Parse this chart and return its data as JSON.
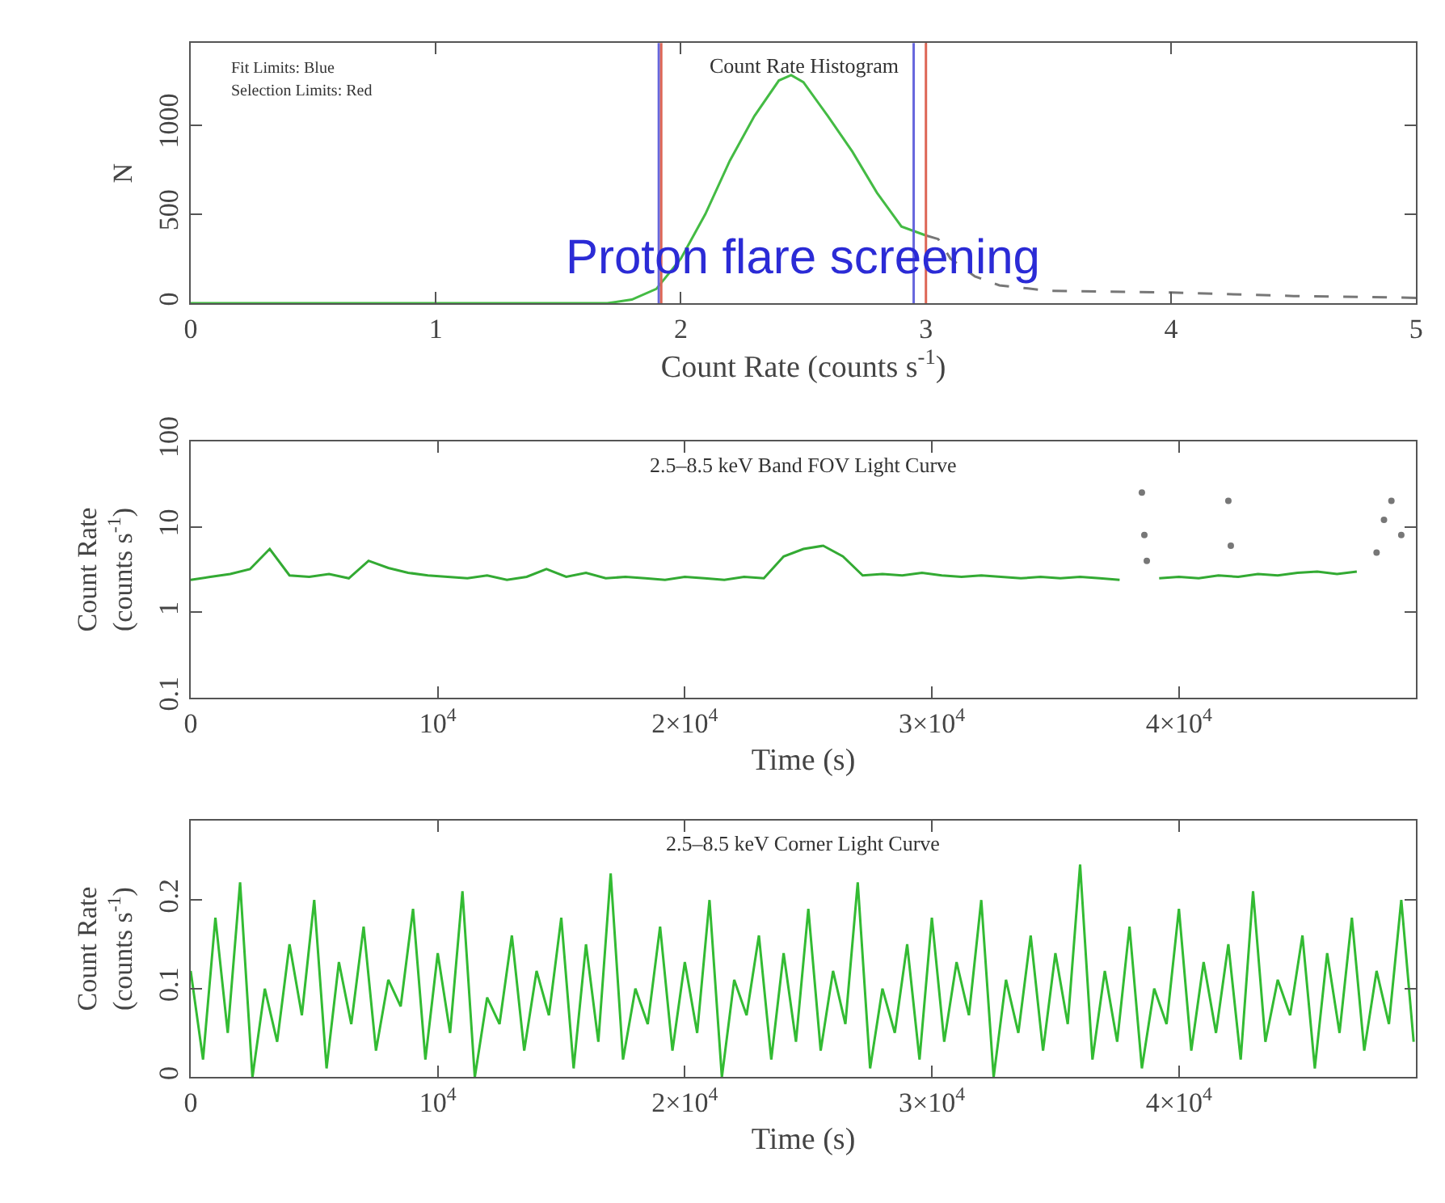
{
  "chart_data": [
    {
      "type": "line",
      "title": "Count Rate Histogram",
      "subtitle": "Proton flare screening",
      "xlabel": "Count Rate (counts s$^{-1}$)",
      "ylabel": "N",
      "series": [
        {
          "color": "#44bb44",
          "line_style": "solid",
          "x": [
            0,
            0.5,
            1.0,
            1.5,
            1.7,
            1.8,
            1.9,
            2.0,
            2.1,
            2.2,
            2.3,
            2.4,
            2.45,
            2.5,
            2.6,
            2.7,
            2.8,
            2.9,
            3.0
          ],
          "values": [
            0,
            0,
            0,
            0,
            0,
            20,
            80,
            250,
            500,
            800,
            1050,
            1250,
            1280,
            1240,
            1050,
            850,
            620,
            430,
            380
          ]
        },
        {
          "color": "#777777",
          "line_style": "dashed",
          "x": [
            3.0,
            3.05,
            3.1,
            3.2,
            3.3,
            3.5,
            4.0,
            4.5,
            5.0
          ],
          "values": [
            380,
            360,
            250,
            150,
            100,
            70,
            60,
            40,
            30
          ]
        }
      ],
      "xlim": [
        0,
        5
      ],
      "ylim": [
        0,
        1460
      ],
      "xticks": [
        0,
        1,
        2,
        3,
        4,
        5
      ],
      "yticks": [
        0,
        500,
        1000
      ],
      "ref_lines": [
        {
          "axis": "x",
          "value": 1.91,
          "color": "#6666dd"
        },
        {
          "axis": "x",
          "value": 2.95,
          "color": "#6666dd"
        },
        {
          "axis": "x",
          "value": 1.92,
          "color": "#dd6655"
        },
        {
          "axis": "x",
          "value": 3.0,
          "color": "#dd6655"
        }
      ],
      "annotations": [
        "Fit Limits: Blue",
        "Selection Limits: Red"
      ]
    },
    {
      "type": "line",
      "title": "2.5–8.5 keV Band FOV Light Curve",
      "xlabel": "Time (s)",
      "ylabel": "Count Rate\n(counts s$^{-1}$)",
      "log": true,
      "series": [
        {
          "color": "#33aa33",
          "x": [
            0,
            800,
            1600,
            2400,
            3200,
            4000,
            4800,
            5600,
            6400,
            7200,
            8000,
            8800,
            9600,
            10400,
            11200,
            12000,
            12800,
            13600,
            14400,
            15200,
            16000,
            16800,
            17600,
            18400,
            19200,
            20000,
            20800,
            21600,
            22400,
            23200,
            24000,
            24800,
            25600,
            26400,
            27200,
            28000,
            28800,
            29600,
            30400,
            31200,
            32000,
            32800,
            33600,
            34400,
            35200,
            36000,
            36800,
            37600,
            38400,
            39200,
            40000,
            40800,
            41600,
            42400,
            43200,
            44000,
            44800,
            45600,
            46400,
            47200
          ],
          "values": [
            2.4,
            2.6,
            2.8,
            3.2,
            5.5,
            2.7,
            2.6,
            2.8,
            2.5,
            4.0,
            3.3,
            2.9,
            2.7,
            2.6,
            2.5,
            2.7,
            2.4,
            2.6,
            3.2,
            2.6,
            2.9,
            2.5,
            2.6,
            2.5,
            2.4,
            2.6,
            2.5,
            2.4,
            2.6,
            2.5,
            4.5,
            5.5,
            6.0,
            4.5,
            2.7,
            2.8,
            2.7,
            2.9,
            2.7,
            2.6,
            2.7,
            2.6,
            2.5,
            2.6,
            2.5,
            2.6,
            2.5,
            2.4,
            null,
            2.5,
            2.6,
            2.5,
            2.7,
            2.6,
            2.8,
            2.7,
            2.9,
            3.0,
            2.8,
            3.0
          ]
        },
        {
          "type": "scatter",
          "marker": "circle",
          "color": "#777777",
          "x": [
            38500,
            38600,
            38700,
            42000,
            42100,
            48000,
            48300,
            48600,
            49000
          ],
          "values": [
            25,
            8,
            4,
            20,
            6,
            5,
            12,
            20,
            8
          ]
        }
      ],
      "xlim": [
        0,
        49600
      ],
      "ylim": [
        0.1,
        100
      ],
      "xticks": [
        0,
        {
          "value": 10000,
          "label": "10$^{4}$"
        },
        {
          "value": 20000,
          "label": "2×10$^{4}$"
        },
        {
          "value": 30000,
          "label": "3×10$^{4}$"
        },
        {
          "value": 40000,
          "label": "4×10$^{4}$"
        }
      ],
      "yticks": [
        0.1,
        1,
        10,
        100
      ]
    },
    {
      "type": "line",
      "title": "2.5–8.5 keV Corner Light Curve",
      "xlabel": "Time (s)",
      "ylabel": "Count Rate\n(counts s$^{-1}$)",
      "series": [
        {
          "color": "#33bb33",
          "x": [
            0,
            500,
            1000,
            1500,
            2000,
            2500,
            3000,
            3500,
            4000,
            4500,
            5000,
            5500,
            6000,
            6500,
            7000,
            7500,
            8000,
            8500,
            9000,
            9500,
            10000,
            10500,
            11000,
            11500,
            12000,
            12500,
            13000,
            13500,
            14000,
            14500,
            15000,
            15500,
            16000,
            16500,
            17000,
            17500,
            18000,
            18500,
            19000,
            19500,
            20000,
            20500,
            21000,
            21500,
            22000,
            22500,
            23000,
            23500,
            24000,
            24500,
            25000,
            25500,
            26000,
            26500,
            27000,
            27500,
            28000,
            28500,
            29000,
            29500,
            30000,
            30500,
            31000,
            31500,
            32000,
            32500,
            33000,
            33500,
            34000,
            34500,
            35000,
            35500,
            36000,
            36500,
            37000,
            37500,
            38000,
            38500,
            39000,
            39500,
            40000,
            40500,
            41000,
            41500,
            42000,
            42500,
            43000,
            43500,
            44000,
            44500,
            45000,
            45500,
            46000,
            46500,
            47000,
            47500,
            48000,
            48500,
            49000,
            49500
          ],
          "values": [
            0.12,
            0.02,
            0.18,
            0.05,
            0.22,
            0.0,
            0.1,
            0.04,
            0.15,
            0.07,
            0.2,
            0.01,
            0.13,
            0.06,
            0.17,
            0.03,
            0.11,
            0.08,
            0.19,
            0.02,
            0.14,
            0.05,
            0.21,
            0.0,
            0.09,
            0.06,
            0.16,
            0.03,
            0.12,
            0.07,
            0.18,
            0.01,
            0.15,
            0.04,
            0.23,
            0.02,
            0.1,
            0.06,
            0.17,
            0.03,
            0.13,
            0.05,
            0.2,
            0.0,
            0.11,
            0.07,
            0.16,
            0.02,
            0.14,
            0.04,
            0.19,
            0.03,
            0.12,
            0.06,
            0.22,
            0.01,
            0.1,
            0.05,
            0.15,
            0.02,
            0.18,
            0.04,
            0.13,
            0.07,
            0.2,
            0.0,
            0.11,
            0.05,
            0.16,
            0.03,
            0.14,
            0.06,
            0.24,
            0.02,
            0.12,
            0.04,
            0.17,
            0.01,
            0.1,
            0.06,
            0.19,
            0.03,
            0.13,
            0.05,
            0.15,
            0.02,
            0.21,
            0.04,
            0.11,
            0.07,
            0.16,
            0.01,
            0.14,
            0.05,
            0.18,
            0.03,
            0.12,
            0.06,
            0.2,
            0.04
          ]
        }
      ],
      "xlim": [
        0,
        49600
      ],
      "ylim": [
        0,
        0.29
      ],
      "xticks": [
        0,
        {
          "value": 10000,
          "label": "10$^{4}$"
        },
        {
          "value": 20000,
          "label": "2×10$^{4}$"
        },
        {
          "value": 30000,
          "label": "3×10$^{4}$"
        },
        {
          "value": 40000,
          "label": "4×10$^{4}$"
        }
      ],
      "yticks": [
        0,
        0.1,
        0.2
      ]
    }
  ]
}
